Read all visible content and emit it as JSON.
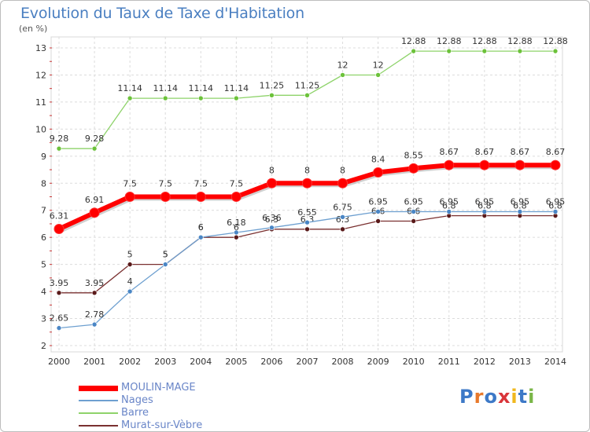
{
  "title": "Evolution du Taux de Taxe d'Habitation",
  "unit": "(en %)",
  "logo": {
    "text": "Proxiti",
    "colors": [
      "#3d79c7",
      "#e8792b",
      "#3d79c7",
      "#d9353a",
      "#f0b81e",
      "#3d79c7",
      "#7ab648"
    ]
  },
  "chart_data": {
    "type": "line",
    "x": [
      "2000",
      "2001",
      "2002",
      "2003",
      "2004",
      "2005",
      "2006",
      "2007",
      "2008",
      "2009",
      "2010",
      "2011",
      "2012",
      "2013",
      "2014"
    ],
    "ylim": [
      2,
      13
    ],
    "yticks": [
      "2",
      "3",
      "4",
      "5",
      "6",
      "7",
      "8",
      "9",
      "10",
      "11",
      "12",
      "13"
    ],
    "grid": true,
    "legend_position": "bottom-left",
    "series": [
      {
        "name": "MOULIN-MAGE",
        "color": "#ff0000",
        "values": [
          6.31,
          6.91,
          7.5,
          7.5,
          7.5,
          7.5,
          8,
          8,
          8,
          8.4,
          8.55,
          8.67,
          8.67,
          8.67,
          8.67
        ],
        "labels": [
          "6.31",
          "6.91",
          "7.5",
          "7.5",
          "7.5",
          "7.5",
          "8",
          "8",
          "8",
          "8.4",
          "8.55",
          "8.67",
          "8.67",
          "8.67",
          "8.67"
        ]
      },
      {
        "name": "Nages",
        "color": "#6ea0d0",
        "values": [
          2.65,
          2.78,
          4,
          5,
          6,
          6.18,
          6.36,
          6.55,
          6.75,
          6.95,
          6.95,
          6.95,
          6.95,
          6.95,
          6.95
        ],
        "labels": [
          "2.65",
          "2.78",
          "4",
          "5",
          "6",
          "6.18",
          "6.36",
          "6.55",
          "6.75",
          "6.95",
          "6.95",
          "6.95",
          "6.95",
          "6.95",
          "6.95"
        ]
      },
      {
        "name": "Barre",
        "color": "#8ed36a",
        "values": [
          9.28,
          9.28,
          11.14,
          11.14,
          11.14,
          11.14,
          11.25,
          11.25,
          12,
          12,
          12.88,
          12.88,
          12.88,
          12.88,
          12.88
        ],
        "labels": [
          "9.28",
          "9.28",
          "11.14",
          "11.14",
          "11.14",
          "11.14",
          "11.25",
          "11.25",
          "12",
          "12",
          "12.88",
          "12.88",
          "12.88",
          "12.88",
          "12.88"
        ]
      },
      {
        "name": "Murat-sur-Vèbre",
        "color": "#7a3030",
        "values": [
          3.95,
          3.95,
          5,
          5,
          6,
          6,
          6.3,
          6.3,
          6.3,
          6.6,
          6.6,
          6.8,
          6.8,
          6.8,
          6.8
        ],
        "labels": [
          "3.95",
          "3.95",
          "5",
          "5",
          "6",
          "6",
          "6.3",
          "6.3",
          "6.3",
          "6.6",
          "6.6",
          "6.8",
          "6.8",
          "6.8",
          "6.8"
        ]
      }
    ]
  }
}
